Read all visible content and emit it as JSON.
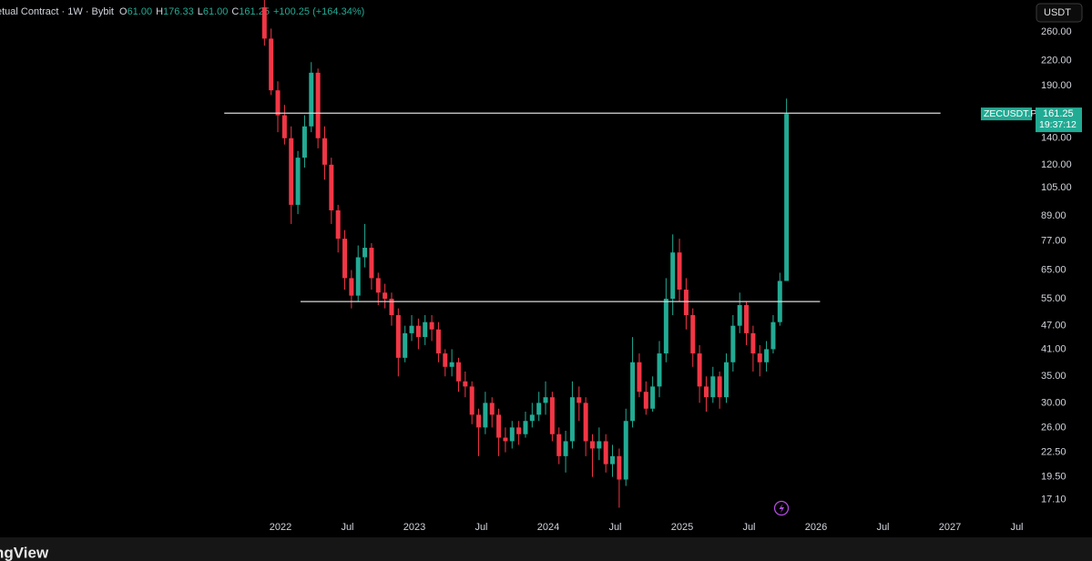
{
  "header": {
    "symbol": "etual Contract · 1W · Bybit",
    "ohlc": [
      {
        "key": "O",
        "value": "61.00"
      },
      {
        "key": "H",
        "value": "176.33"
      },
      {
        "key": "L",
        "value": "61.00"
      },
      {
        "key": "C",
        "value": "161.25"
      }
    ],
    "change": "+100.25 (+164.34%)"
  },
  "currency_button": "USDT",
  "price_tag": {
    "symbol": "ZECUSDT.P",
    "price": "161.25",
    "countdown": "19:37:12"
  },
  "footer_logo": "ngView",
  "chart_data": {
    "type": "candlestick",
    "log_scale": true,
    "grid": false,
    "up_color": "#22ab94",
    "down_color": "#f23645",
    "line_color": "#d9d9d9",
    "xlim": [
      2019.905,
      2027.626
    ],
    "ylim": [
      15.25,
      313
    ],
    "xticks": [
      2022,
      {
        "value": 2022.5,
        "label": "Jul"
      },
      2023,
      {
        "value": 2023.5,
        "label": "Jul"
      },
      2024,
      {
        "value": 2024.5,
        "label": "Jul"
      },
      2025,
      {
        "value": 2025.5,
        "label": "Jul"
      },
      2026,
      {
        "value": 2026.5,
        "label": "Jul"
      },
      2027,
      {
        "value": 2027.5,
        "label": "Jul"
      }
    ],
    "yticks": [
      {
        "value": 260,
        "label": "260.00"
      },
      {
        "value": 220,
        "label": "220.00"
      },
      {
        "value": 190,
        "label": "190.00"
      },
      {
        "value": 140,
        "label": "140.00"
      },
      {
        "value": 120,
        "label": "120.00"
      },
      {
        "value": 105,
        "label": "105.00"
      },
      {
        "value": 89,
        "label": "89.00"
      },
      {
        "value": 77,
        "label": "77.00"
      },
      {
        "value": 65,
        "label": "65.00"
      },
      {
        "value": 55,
        "label": "55.00"
      },
      {
        "value": 47,
        "label": "47.00"
      },
      {
        "value": 41,
        "label": "41.00"
      },
      {
        "value": 35,
        "label": "35.00"
      },
      {
        "value": 30,
        "label": "30.00"
      },
      {
        "value": 26,
        "label": "26.00"
      },
      {
        "value": 22.5,
        "label": "22.50"
      },
      {
        "value": 19.5,
        "label": "19.50"
      },
      {
        "value": 17.1,
        "label": "17.10"
      }
    ],
    "horizontal_lines": [
      {
        "value": 162,
        "x": [
          2021.58,
          2026.93
        ]
      },
      {
        "value": 54.1,
        "x": [
          2022.15,
          2026.03
        ]
      }
    ],
    "x": [
      2021.88,
      2021.93,
      2021.98,
      2022.03,
      2022.08,
      2022.13,
      2022.18,
      2022.23,
      2022.28,
      2022.33,
      2022.38,
      2022.43,
      2022.48,
      2022.53,
      2022.58,
      2022.63,
      2022.68,
      2022.73,
      2022.78,
      2022.83,
      2022.88,
      2022.93,
      2022.98,
      2023.03,
      2023.08,
      2023.13,
      2023.18,
      2023.23,
      2023.28,
      2023.33,
      2023.38,
      2023.43,
      2023.48,
      2023.53,
      2023.58,
      2023.63,
      2023.68,
      2023.73,
      2023.78,
      2023.83,
      2023.88,
      2023.93,
      2023.98,
      2024.03,
      2024.08,
      2024.13,
      2024.18,
      2024.23,
      2024.28,
      2024.33,
      2024.38,
      2024.43,
      2024.48,
      2024.53,
      2024.58,
      2024.63,
      2024.68,
      2024.73,
      2024.78,
      2024.83,
      2024.88,
      2024.93,
      2024.98,
      2025.03,
      2025.08,
      2025.13,
      2025.18,
      2025.23,
      2025.28,
      2025.33,
      2025.38,
      2025.43,
      2025.48,
      2025.53,
      2025.58,
      2025.63,
      2025.68,
      2025.73,
      2025.78
    ],
    "open": [
      300,
      250,
      185,
      160,
      140,
      95,
      125,
      150,
      205,
      140,
      120,
      92,
      78,
      62,
      56,
      70,
      74,
      62,
      57,
      55,
      50,
      39,
      45,
      47,
      44,
      48,
      46,
      40,
      37,
      38,
      34,
      33,
      28,
      26,
      30,
      28,
      24.5,
      24,
      26,
      25,
      27,
      28,
      30,
      31,
      25,
      22,
      24,
      31,
      30,
      24,
      23,
      24,
      21,
      22,
      19.2,
      27,
      38,
      32,
      29,
      33,
      40,
      55,
      72,
      58,
      50,
      40,
      33,
      31,
      35,
      31,
      38,
      47,
      53,
      45,
      40,
      38,
      41,
      48,
      61
    ],
    "high": [
      313,
      265,
      195,
      170,
      150,
      130,
      160,
      218,
      210,
      150,
      125,
      95,
      82,
      65,
      75,
      85,
      76,
      64,
      60,
      57,
      52,
      47,
      50,
      49,
      50,
      50,
      48,
      41,
      41,
      39,
      36,
      34,
      29,
      32,
      31,
      29,
      26,
      27,
      27,
      28.5,
      30,
      32,
      34,
      32,
      26,
      25.5,
      34,
      33,
      31,
      25,
      26,
      25,
      23.5,
      23,
      29,
      44,
      40,
      34,
      35,
      43,
      62,
      80,
      78,
      62,
      52,
      42,
      35,
      37,
      36,
      40,
      50,
      57,
      54,
      47,
      42,
      43,
      50,
      64,
      176.33
    ],
    "low": [
      240,
      180,
      145,
      135,
      85,
      90,
      118,
      145,
      132,
      110,
      85,
      72,
      58,
      52,
      54,
      66,
      58,
      53,
      52,
      47,
      35,
      38,
      43,
      41,
      42,
      43,
      38,
      35,
      35,
      32,
      31,
      26.5,
      22,
      25,
      26,
      22,
      22.5,
      23,
      23.5,
      24.5,
      26,
      27,
      28,
      24,
      21,
      20,
      23,
      27,
      22,
      19.5,
      21.5,
      20,
      19.5,
      16.3,
      18.5,
      26,
      31,
      28,
      28.5,
      31,
      38,
      50,
      54,
      46,
      37,
      30,
      28.5,
      30,
      29,
      30,
      36,
      45,
      42,
      36,
      35,
      36,
      40,
      47,
      61
    ],
    "close": [
      250,
      185,
      160,
      140,
      95,
      125,
      150,
      205,
      140,
      120,
      92,
      78,
      62,
      56,
      70,
      74,
      62,
      57,
      55,
      50,
      39,
      45,
      47,
      44,
      48,
      46,
      40,
      37,
      38,
      34,
      33,
      28,
      26,
      30,
      28,
      24.5,
      24,
      26,
      25,
      27,
      28,
      30,
      31,
      25,
      22,
      24,
      31,
      30,
      24,
      23,
      24,
      21,
      22,
      19.2,
      27,
      38,
      32,
      29,
      33,
      40,
      55,
      72,
      58,
      50,
      40,
      33,
      31,
      35,
      31,
      38,
      47,
      53,
      45,
      40,
      38,
      41,
      48,
      61,
      161.25
    ]
  }
}
